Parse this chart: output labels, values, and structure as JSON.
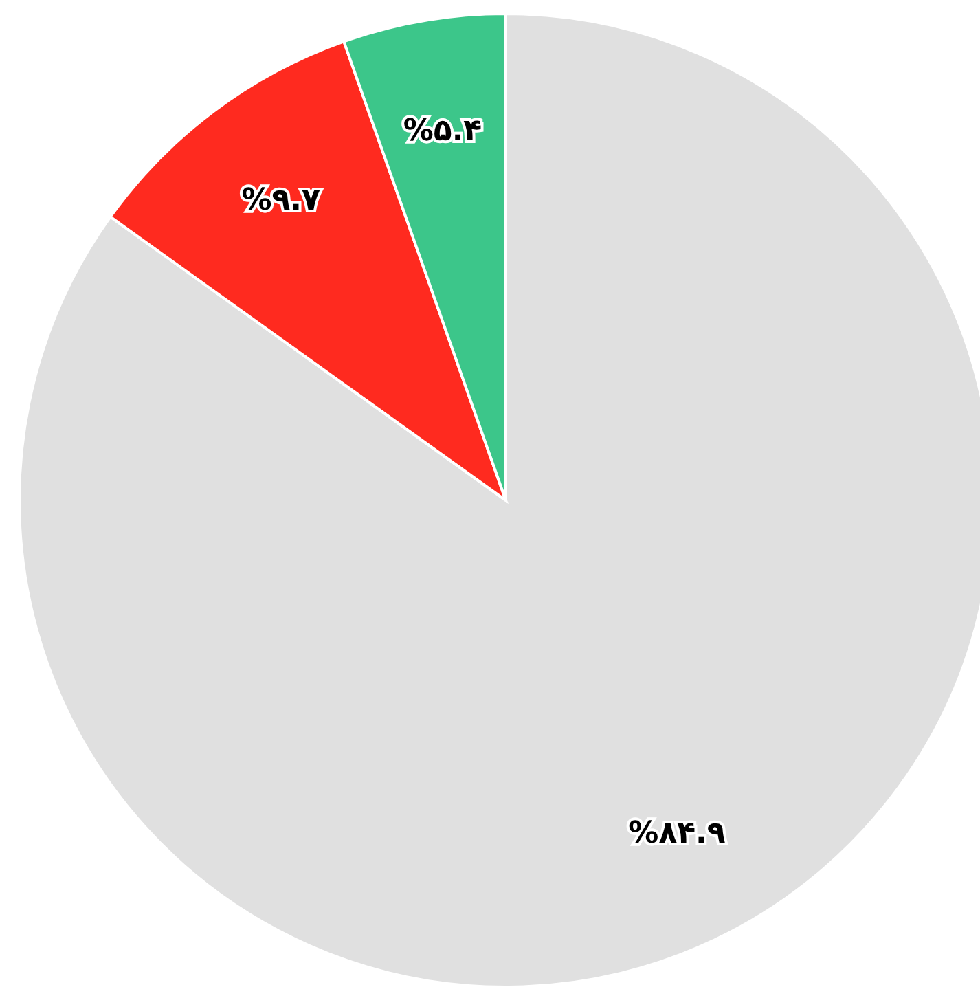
{
  "chart_data": {
    "type": "pie",
    "categories": [
      null,
      null,
      null
    ],
    "values": [
      84.9,
      9.7,
      5.4
    ],
    "colors": [
      "#e0e0e0",
      "#ff2a1f",
      "#3cc68a"
    ],
    "value_labels": [
      "%۸۴.۹",
      "%۹.۷",
      "%۵.۴"
    ],
    "legend": false
  }
}
